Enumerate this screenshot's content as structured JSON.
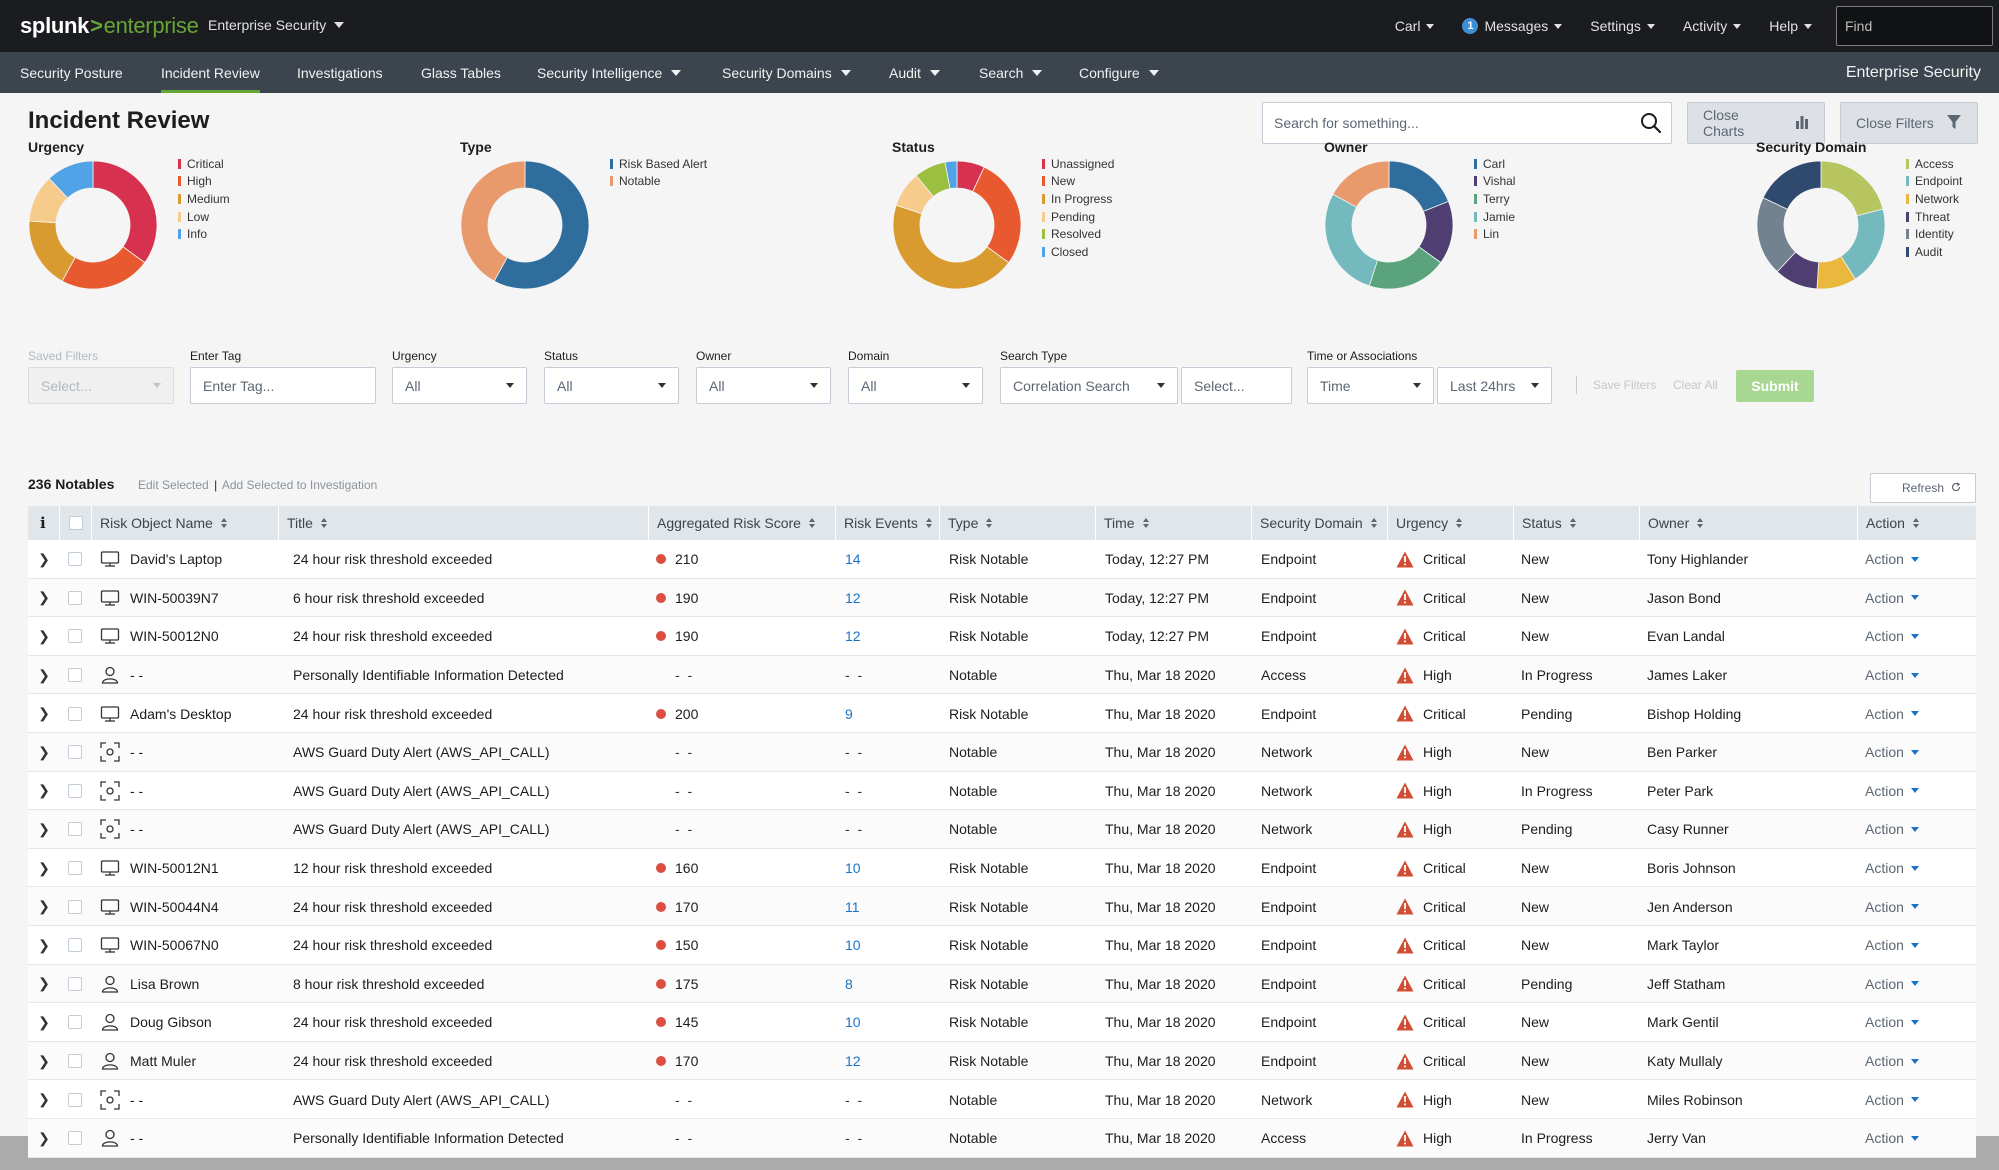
{
  "topbar": {
    "logo_part1": "splunk",
    "logo_gt": ">",
    "logo_part2": "enterprise",
    "app_switcher": "Enterprise Security",
    "user": "Carl",
    "messages_count": "1",
    "messages": "Messages",
    "settings": "Settings",
    "activity": "Activity",
    "help": "Help",
    "find_placeholder": "Find"
  },
  "nav": {
    "items": [
      {
        "label": "Security Posture"
      },
      {
        "label": "Incident Review"
      },
      {
        "label": "Investigations"
      },
      {
        "label": "Glass Tables"
      },
      {
        "label": "Security Intelligence"
      },
      {
        "label": "Security Domains"
      },
      {
        "label": "Audit"
      },
      {
        "label": "Search"
      },
      {
        "label": "Configure"
      }
    ],
    "app_title": "Enterprise Security"
  },
  "page": {
    "title": "Incident Review",
    "search_placeholder": "Search for something...",
    "close_charts": "Close Charts",
    "close_filters": "Close Filters"
  },
  "charts": [
    {
      "title": "Urgency",
      "segments": [
        {
          "label": "Critical",
          "value": 35,
          "color": "#d6314f"
        },
        {
          "label": "High",
          "value": 23,
          "color": "#e8592f"
        },
        {
          "label": "Medium",
          "value": 18,
          "color": "#d99b2f"
        },
        {
          "label": "Low",
          "value": 12,
          "color": "#f6cb8c"
        },
        {
          "label": "Info",
          "value": 12,
          "color": "#4fa3e6"
        }
      ]
    },
    {
      "title": "Type",
      "segments": [
        {
          "label": "Risk Based Alert",
          "value": 58,
          "color": "#2f6e9c"
        },
        {
          "label": "Notable",
          "value": 42,
          "color": "#e89a6c"
        }
      ]
    },
    {
      "title": "Status",
      "segments": [
        {
          "label": "Unassigned",
          "value": 7,
          "color": "#d6314f"
        },
        {
          "label": "New",
          "value": 28,
          "color": "#e8592f"
        },
        {
          "label": "In Progress",
          "value": 45,
          "color": "#d99b2f"
        },
        {
          "label": "Pending",
          "value": 9,
          "color": "#f6cb8c"
        },
        {
          "label": "Resolved",
          "value": 8,
          "color": "#9bbf3e"
        },
        {
          "label": "Closed",
          "value": 3,
          "color": "#4fa3e6"
        }
      ]
    },
    {
      "title": "Owner",
      "segments": [
        {
          "label": "Carl",
          "value": 19,
          "color": "#2f6e9c"
        },
        {
          "label": "Vishal",
          "value": 16,
          "color": "#4f3e72"
        },
        {
          "label": "Terry",
          "value": 20,
          "color": "#5aa37d"
        },
        {
          "label": "Jamie",
          "value": 28,
          "color": "#73b9bd"
        },
        {
          "label": "Lin",
          "value": 17,
          "color": "#e89a6c"
        }
      ]
    },
    {
      "title": "Security Domain",
      "segments": [
        {
          "label": "Access",
          "value": 21,
          "color": "#b7c561"
        },
        {
          "label": "Endpoint",
          "value": 20,
          "color": "#73b9bd"
        },
        {
          "label": "Network",
          "value": 10,
          "color": "#e9b83c"
        },
        {
          "label": "Threat",
          "value": 11,
          "color": "#4f3e72"
        },
        {
          "label": "Identity",
          "value": 20,
          "color": "#728290"
        },
        {
          "label": "Audit",
          "value": 18,
          "color": "#2f4a6e"
        }
      ]
    }
  ],
  "filters": {
    "saved_filters_label": "Saved Filters",
    "saved_filters_value": "Select...",
    "tag_label": "Enter Tag",
    "tag_placeholder": "Enter Tag...",
    "urgency_label": "Urgency",
    "urgency_value": "All",
    "status_label": "Status",
    "status_value": "All",
    "owner_label": "Owner",
    "owner_value": "All",
    "domain_label": "Domain",
    "domain_value": "All",
    "search_type_label": "Search Type",
    "search_type_value": "Correlation Search",
    "search_select_value": "Select...",
    "time_label": "Time or Associations",
    "time_value": "Time",
    "range_value": "Last 24hrs",
    "save_filters": "Save Filters",
    "clear_all": "Clear All",
    "submit": "Submit"
  },
  "notables": {
    "count": "236 Notables",
    "edit_selected": "Edit Selected",
    "pipe": "|",
    "add_to_investigation": "Add Selected to Investigation",
    "refresh": "Refresh"
  },
  "table": {
    "info_header": "i",
    "columns": [
      "Risk Object Name",
      "Title",
      "Aggregated Risk Score",
      "Risk Events",
      "Type",
      "Time",
      "Security Domain",
      "Urgency",
      "Status",
      "Owner",
      "Action"
    ],
    "rows": [
      {
        "icon": "laptop",
        "object": "David's Laptop",
        "title": "24 hour risk threshold exceeded",
        "score": "210",
        "events": "14",
        "type": "Risk Notable",
        "time": "Today, 12:27 PM",
        "domain": "Endpoint",
        "urgency": "Critical",
        "status": "New",
        "owner": "Tony Highlander",
        "action": "Action"
      },
      {
        "icon": "laptop",
        "object": "WIN-50039N7",
        "title": "6 hour risk threshold exceeded",
        "score": "190",
        "events": "12",
        "type": "Risk Notable",
        "time": "Today, 12:27 PM",
        "domain": "Endpoint",
        "urgency": "Critical",
        "status": "New",
        "owner": "Jason Bond",
        "action": "Action"
      },
      {
        "icon": "laptop",
        "object": "WIN-50012N0",
        "title": "24 hour risk threshold exceeded",
        "score": "190",
        "events": "12",
        "type": "Risk Notable",
        "time": "Today, 12:27 PM",
        "domain": "Endpoint",
        "urgency": "Critical",
        "status": "New",
        "owner": "Evan Landal",
        "action": "Action"
      },
      {
        "icon": "user",
        "object": "- -",
        "title": "Personally Identifiable Information Detected",
        "score": "- -",
        "events": "- -",
        "type": "Notable",
        "time": "Thu, Mar 18 2020",
        "domain": "Access",
        "urgency": "High",
        "status": "In Progress",
        "owner": "James Laker",
        "action": "Action"
      },
      {
        "icon": "laptop",
        "object": "Adam's Desktop",
        "title": "24 hour risk threshold exceeded",
        "score": "200",
        "events": "9",
        "type": "Risk Notable",
        "time": "Thu, Mar 18 2020",
        "domain": "Endpoint",
        "urgency": "Critical",
        "status": "Pending",
        "owner": "Bishop Holding",
        "action": "Action"
      },
      {
        "icon": "scan",
        "object": "- -",
        "title": "AWS Guard Duty Alert (AWS_API_CALL)",
        "score": "- -",
        "events": "- -",
        "type": "Notable",
        "time": "Thu, Mar 18 2020",
        "domain": "Network",
        "urgency": "High",
        "status": "New",
        "owner": "Ben Parker",
        "action": "Action"
      },
      {
        "icon": "scan",
        "object": "- -",
        "title": "AWS Guard Duty Alert (AWS_API_CALL)",
        "score": "- -",
        "events": "- -",
        "type": "Notable",
        "time": "Thu, Mar 18 2020",
        "domain": "Network",
        "urgency": "High",
        "status": "In Progress",
        "owner": "Peter Park",
        "action": "Action"
      },
      {
        "icon": "scan",
        "object": "- -",
        "title": "AWS Guard Duty Alert (AWS_API_CALL)",
        "score": "- -",
        "events": "- -",
        "type": "Notable",
        "time": "Thu, Mar 18 2020",
        "domain": "Network",
        "urgency": "High",
        "status": "Pending",
        "owner": "Casy Runner",
        "action": "Action"
      },
      {
        "icon": "laptop",
        "object": "WIN-50012N1",
        "title": "12 hour risk threshold exceeded",
        "score": "160",
        "events": "10",
        "type": "Risk Notable",
        "time": "Thu, Mar 18 2020",
        "domain": "Endpoint",
        "urgency": "Critical",
        "status": "New",
        "owner": "Boris Johnson",
        "action": "Action"
      },
      {
        "icon": "laptop",
        "object": "WIN-50044N4",
        "title": "24 hour risk threshold exceeded",
        "score": "170",
        "events": "11",
        "type": "Risk Notable",
        "time": "Thu, Mar 18 2020",
        "domain": "Endpoint",
        "urgency": "Critical",
        "status": "New",
        "owner": "Jen Anderson",
        "action": "Action"
      },
      {
        "icon": "laptop",
        "object": "WIN-50067N0",
        "title": "24 hour risk threshold exceeded",
        "score": "150",
        "events": "10",
        "type": "Risk Notable",
        "time": "Thu, Mar 18 2020",
        "domain": "Endpoint",
        "urgency": "Critical",
        "status": "New",
        "owner": "Mark Taylor",
        "action": "Action"
      },
      {
        "icon": "user",
        "object": "Lisa Brown",
        "title": "8 hour risk threshold exceeded",
        "score": "175",
        "events": "8",
        "type": "Risk Notable",
        "time": "Thu, Mar 18 2020",
        "domain": "Endpoint",
        "urgency": "Critical",
        "status": "Pending",
        "owner": "Jeff Statham",
        "action": "Action"
      },
      {
        "icon": "user",
        "object": "Doug Gibson",
        "title": "24 hour risk threshold exceeded",
        "score": "145",
        "events": "10",
        "type": "Risk Notable",
        "time": "Thu, Mar 18 2020",
        "domain": "Endpoint",
        "urgency": "Critical",
        "status": "New",
        "owner": "Mark Gentil",
        "action": "Action"
      },
      {
        "icon": "user",
        "object": "Matt Muler",
        "title": "24 hour risk threshold exceeded",
        "score": "170",
        "events": "12",
        "type": "Risk Notable",
        "time": "Thu, Mar 18 2020",
        "domain": "Endpoint",
        "urgency": "Critical",
        "status": "New",
        "owner": "Katy Mullaly",
        "action": "Action"
      },
      {
        "icon": "scan",
        "object": "- -",
        "title": "AWS Guard Duty Alert (AWS_API_CALL)",
        "score": "- -",
        "events": "- -",
        "type": "Notable",
        "time": "Thu, Mar 18 2020",
        "domain": "Network",
        "urgency": "High",
        "status": "New",
        "owner": "Miles Robinson",
        "action": "Action"
      },
      {
        "icon": "user",
        "object": "- -",
        "title": "Personally Identifiable Information Detected",
        "score": "- -",
        "events": "- -",
        "type": "Notable",
        "time": "Thu, Mar 18 2020",
        "domain": "Access",
        "urgency": "High",
        "status": "In Progress",
        "owner": "Jerry Van",
        "action": "Action"
      }
    ]
  }
}
